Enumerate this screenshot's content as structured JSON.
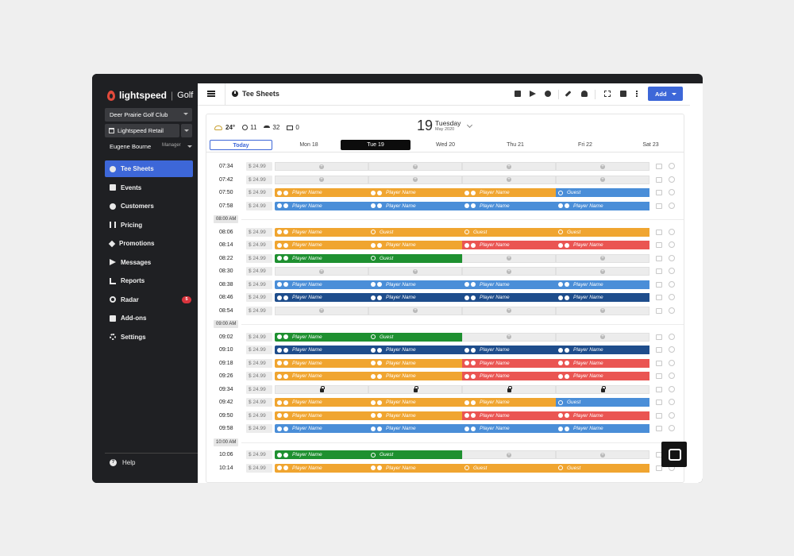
{
  "app": {
    "brand": "lightspeed",
    "product": "Golf",
    "club": "Deer Prairie Golf Club",
    "store": "Lightspeed Retail",
    "user_name": "Eugene Bourne",
    "user_role": "Manager",
    "accent": "#3d67d8"
  },
  "nav": {
    "items": [
      {
        "label": "Tee Sheets",
        "icon": "clock-icon",
        "active": true
      },
      {
        "label": "Events",
        "icon": "calendar-icon"
      },
      {
        "label": "Customers",
        "icon": "user-icon"
      },
      {
        "label": "Pricing",
        "icon": "price-icon"
      },
      {
        "label": "Promotions",
        "icon": "tag-icon"
      },
      {
        "label": "Messages",
        "icon": "send-icon"
      },
      {
        "label": "Reports",
        "icon": "chart-icon"
      },
      {
        "label": "Radar",
        "icon": "radar-icon",
        "badge": "5"
      },
      {
        "label": "Add-ons",
        "icon": "addons-icon"
      },
      {
        "label": "Settings",
        "icon": "gear-icon"
      }
    ],
    "help": "Help"
  },
  "header": {
    "title": "Tee Sheets",
    "add_label": "Add"
  },
  "conditions": {
    "temperature": "24°",
    "stat_a": "11",
    "stat_b": "32",
    "stat_c": "0"
  },
  "date": {
    "day": "19",
    "weekday": "Tuesday",
    "month_year": "May 2020"
  },
  "days": {
    "today": "Today",
    "mon": "Mon 18",
    "tue": "Tue 19",
    "wed": "Wed 20",
    "thu": "Thu 21",
    "fri": "Fri 22",
    "sat": "Sat 23"
  },
  "colors": {
    "orange": "#f0a530",
    "blue": "#4a8ed8",
    "navy": "#1e4d8c",
    "red": "#ea5552",
    "green": "#1e9030"
  },
  "tee_sheet": [
    {
      "time": "07:34",
      "price": "$ 24.99",
      "slots": [
        "E",
        "E",
        "E",
        "E"
      ]
    },
    {
      "time": "07:42",
      "price": "$ 24.99",
      "slots": [
        "E",
        "E",
        "E",
        "E"
      ]
    },
    {
      "time": "07:50",
      "price": "$ 24.99",
      "slots": [
        "o:P",
        "o:P",
        "o:P",
        "b:G"
      ]
    },
    {
      "time": "07:58",
      "price": "$ 24.99",
      "slots": [
        "b:P",
        "b:P",
        "b:P",
        "b:P"
      ]
    },
    {
      "hour": "08:00 AM"
    },
    {
      "time": "08:06",
      "price": "$ 24.99",
      "slots": [
        "o:P",
        "o:G",
        "o:G",
        "o:G"
      ]
    },
    {
      "time": "08:14",
      "price": "$ 24.99",
      "slots": [
        "o:P",
        "o:P",
        "r:P",
        "r:P"
      ]
    },
    {
      "time": "08:22",
      "price": "$ 24.99",
      "slots": [
        "g:P",
        "g:G",
        "E",
        "E"
      ]
    },
    {
      "time": "08:30",
      "price": "$ 24.99",
      "slots": [
        "E",
        "E",
        "E",
        "E"
      ]
    },
    {
      "time": "08:38",
      "price": "$ 24.99",
      "slots": [
        "b:P",
        "b:P",
        "b:P",
        "b:P"
      ]
    },
    {
      "time": "08:46",
      "price": "$ 24.99",
      "slots": [
        "n:P",
        "n:P",
        "n:P",
        "n:P"
      ]
    },
    {
      "time": "08:54",
      "price": "$ 24.99",
      "slots": [
        "E",
        "E",
        "E",
        "E"
      ]
    },
    {
      "hour": "09:00 AM"
    },
    {
      "time": "09:02",
      "price": "$ 24.99",
      "slots": [
        "g:P",
        "g:G",
        "E",
        "E"
      ]
    },
    {
      "time": "09:10",
      "price": "$ 24.99",
      "slots": [
        "n:P",
        "n:P",
        "n:P",
        "n:P"
      ]
    },
    {
      "time": "09:18",
      "price": "$ 24.99",
      "slots": [
        "o:P",
        "o:P",
        "r:P",
        "r:P"
      ]
    },
    {
      "time": "09:26",
      "price": "$ 24.99",
      "slots": [
        "o:P",
        "o:P",
        "r:P",
        "r:P"
      ]
    },
    {
      "time": "09:34",
      "price": "$ 24.99",
      "slots": [
        "L",
        "L",
        "L",
        "L"
      ]
    },
    {
      "time": "09:42",
      "price": "$ 24.99",
      "slots": [
        "o:P",
        "o:P",
        "o:P",
        "b:G"
      ]
    },
    {
      "time": "09:50",
      "price": "$ 24.99",
      "slots": [
        "o:P",
        "o:P",
        "r:P",
        "r:P"
      ]
    },
    {
      "time": "09:58",
      "price": "$ 24.99",
      "slots": [
        "b:P",
        "b:P",
        "b:P",
        "b:P"
      ]
    },
    {
      "hour": "10:00 AM"
    },
    {
      "time": "10:06",
      "price": "$ 24.99",
      "slots": [
        "g:P",
        "g:G",
        "E",
        "E"
      ]
    },
    {
      "time": "10:14",
      "price": "$ 24.99",
      "slots": [
        "o:P",
        "o:P",
        "o:G",
        "o:G"
      ]
    }
  ],
  "labels": {
    "player": "Player Name",
    "guest": "Guest"
  }
}
